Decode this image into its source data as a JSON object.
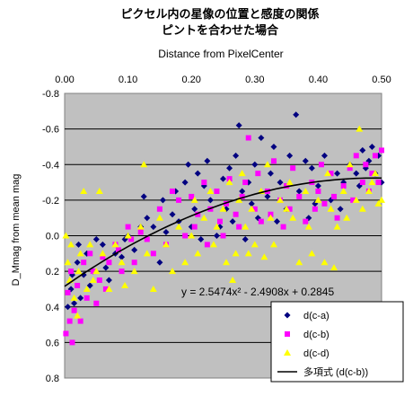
{
  "chart_data": {
    "type": "scatter",
    "title": "ピクセル内の星像の位置と感度の関係",
    "subtitle": "ピントを合わせた場合",
    "xlabel": "Distance from PixelCenter",
    "ylabel": "D_Mmag from mean mag",
    "xlim": [
      0.0,
      0.5
    ],
    "ylim": [
      -0.8,
      0.8
    ],
    "y_inverted": true,
    "x_axis_position": "top",
    "x_ticks": [
      "0.00",
      "0.10",
      "0.20",
      "0.30",
      "0.40",
      "0.50"
    ],
    "y_ticks": [
      "-0.8",
      "-0.6",
      "-0.4",
      "-0.2",
      "0.0",
      "0.2",
      "0.4",
      "0.6",
      "0.8"
    ],
    "grid": true,
    "plot_background": "#c0c0c0",
    "legend_position": "bottom-right",
    "equation": "y = 2.5474x² - 2.4908x + 0.2845",
    "series": [
      {
        "name": "d(c-a)",
        "marker": "diamond",
        "color": "#000080",
        "points": [
          [
            0.005,
            0.4
          ],
          [
            0.01,
            0.3
          ],
          [
            0.012,
            0.22
          ],
          [
            0.015,
            0.38
          ],
          [
            0.02,
            0.15
          ],
          [
            0.022,
            0.05
          ],
          [
            0.025,
            0.35
          ],
          [
            0.03,
            0.22
          ],
          [
            0.035,
            0.1
          ],
          [
            0.04,
            0.28
          ],
          [
            0.045,
            0.2
          ],
          [
            0.05,
            0.02
          ],
          [
            0.06,
            0.05
          ],
          [
            0.065,
            0.18
          ],
          [
            0.07,
            0.25
          ],
          [
            0.08,
            0.1
          ],
          [
            0.09,
            0.12
          ],
          [
            0.095,
            0.02
          ],
          [
            0.1,
            0.0
          ],
          [
            0.11,
            0.08
          ],
          [
            0.12,
            -0.05
          ],
          [
            0.125,
            -0.22
          ],
          [
            0.13,
            -0.1
          ],
          [
            0.14,
            -0.05
          ],
          [
            0.15,
            0.15
          ],
          [
            0.155,
            -0.2
          ],
          [
            0.16,
            -0.02
          ],
          [
            0.17,
            -0.12
          ],
          [
            0.175,
            -0.25
          ],
          [
            0.18,
            -0.08
          ],
          [
            0.19,
            -0.3
          ],
          [
            0.195,
            -0.4
          ],
          [
            0.2,
            -0.05
          ],
          [
            0.205,
            -0.15
          ],
          [
            0.21,
            -0.35
          ],
          [
            0.215,
            0.02
          ],
          [
            0.22,
            -0.28
          ],
          [
            0.225,
            -0.42
          ],
          [
            0.23,
            -0.2
          ],
          [
            0.24,
            0.0
          ],
          [
            0.245,
            -0.05
          ],
          [
            0.25,
            -0.32
          ],
          [
            0.255,
            -0.15
          ],
          [
            0.26,
            -0.38
          ],
          [
            0.265,
            -0.08
          ],
          [
            0.27,
            -0.45
          ],
          [
            0.275,
            -0.62
          ],
          [
            0.28,
            -0.25
          ],
          [
            0.285,
            0.02
          ],
          [
            0.29,
            -0.3
          ],
          [
            0.295,
            -0.18
          ],
          [
            0.3,
            -0.4
          ],
          [
            0.305,
            -0.1
          ],
          [
            0.31,
            -0.55
          ],
          [
            0.32,
            -0.22
          ],
          [
            0.325,
            -0.35
          ],
          [
            0.33,
            -0.5
          ],
          [
            0.335,
            -0.08
          ],
          [
            0.34,
            -0.3
          ],
          [
            0.35,
            -0.15
          ],
          [
            0.355,
            -0.45
          ],
          [
            0.365,
            -0.68
          ],
          [
            0.37,
            -0.25
          ],
          [
            0.38,
            -0.42
          ],
          [
            0.385,
            -0.1
          ],
          [
            0.39,
            -0.38
          ],
          [
            0.395,
            -0.18
          ],
          [
            0.4,
            -0.28
          ],
          [
            0.41,
            -0.45
          ],
          [
            0.42,
            -0.2
          ],
          [
            0.43,
            -0.35
          ],
          [
            0.435,
            -0.15
          ],
          [
            0.44,
            -0.3
          ],
          [
            0.45,
            -0.4
          ],
          [
            0.46,
            -0.35
          ],
          [
            0.465,
            -0.28
          ],
          [
            0.47,
            -0.48
          ],
          [
            0.475,
            -0.38
          ],
          [
            0.48,
            -0.42
          ],
          [
            0.485,
            -0.5
          ],
          [
            0.49,
            -0.35
          ],
          [
            0.495,
            -0.45
          ],
          [
            0.5,
            -0.3
          ]
        ]
      },
      {
        "name": "d(c-b)",
        "marker": "square",
        "color": "#ff00ff",
        "points": [
          [
            0.002,
            0.55
          ],
          [
            0.005,
            0.32
          ],
          [
            0.008,
            0.48
          ],
          [
            0.01,
            0.2
          ],
          [
            0.012,
            0.6
          ],
          [
            0.015,
            0.42
          ],
          [
            0.02,
            0.28
          ],
          [
            0.025,
            0.48
          ],
          [
            0.03,
            0.15
          ],
          [
            0.035,
            0.35
          ],
          [
            0.04,
            0.1
          ],
          [
            0.045,
            0.2
          ],
          [
            0.05,
            0.38
          ],
          [
            0.055,
            0.25
          ],
          [
            0.06,
            0.12
          ],
          [
            0.065,
            0.3
          ],
          [
            0.07,
            0.15
          ],
          [
            0.08,
            0.05
          ],
          [
            0.085,
            0.08
          ],
          [
            0.09,
            0.2
          ],
          [
            0.1,
            -0.05
          ],
          [
            0.105,
            0.02
          ],
          [
            0.11,
            0.15
          ],
          [
            0.12,
            -0.02
          ],
          [
            0.13,
            0.02
          ],
          [
            0.14,
            0.1
          ],
          [
            0.15,
            -0.15
          ],
          [
            0.16,
            0.05
          ],
          [
            0.17,
            -0.25
          ],
          [
            0.18,
            -0.2
          ],
          [
            0.19,
            0.0
          ],
          [
            0.2,
            -0.22
          ],
          [
            0.205,
            -0.05
          ],
          [
            0.21,
            -0.12
          ],
          [
            0.22,
            -0.3
          ],
          [
            0.225,
            0.05
          ],
          [
            0.23,
            -0.15
          ],
          [
            0.24,
            -0.25
          ],
          [
            0.245,
            -0.08
          ],
          [
            0.25,
            0.0
          ],
          [
            0.255,
            -0.18
          ],
          [
            0.26,
            -0.32
          ],
          [
            0.27,
            -0.12
          ],
          [
            0.275,
            -0.05
          ],
          [
            0.28,
            -0.22
          ],
          [
            0.285,
            -0.3
          ],
          [
            0.29,
            -0.55
          ],
          [
            0.3,
            -0.15
          ],
          [
            0.305,
            -0.35
          ],
          [
            0.31,
            -0.08
          ],
          [
            0.32,
            -0.25
          ],
          [
            0.325,
            -0.12
          ],
          [
            0.33,
            -0.42
          ],
          [
            0.34,
            -0.2
          ],
          [
            0.345,
            -0.05
          ],
          [
            0.35,
            -0.28
          ],
          [
            0.355,
            -0.15
          ],
          [
            0.36,
            -0.38
          ],
          [
            0.37,
            -0.22
          ],
          [
            0.38,
            -0.08
          ],
          [
            0.39,
            -0.3
          ],
          [
            0.395,
            -0.15
          ],
          [
            0.4,
            -0.25
          ],
          [
            0.405,
            -0.4
          ],
          [
            0.41,
            -0.18
          ],
          [
            0.42,
            -0.35
          ],
          [
            0.425,
            -0.22
          ],
          [
            0.43,
            -0.1
          ],
          [
            0.44,
            -0.28
          ],
          [
            0.45,
            -0.38
          ],
          [
            0.455,
            -0.2
          ],
          [
            0.46,
            -0.45
          ],
          [
            0.47,
            -0.3
          ],
          [
            0.475,
            -0.4
          ],
          [
            0.48,
            -0.25
          ],
          [
            0.485,
            -0.35
          ],
          [
            0.49,
            -0.45
          ],
          [
            0.495,
            -0.3
          ],
          [
            0.5,
            -0.48
          ]
        ]
      },
      {
        "name": "d(c-d)",
        "marker": "triangle",
        "color": "#ffff00",
        "points": [
          [
            0.002,
            0.0
          ],
          [
            0.005,
            0.15
          ],
          [
            0.008,
            0.25
          ],
          [
            0.01,
            0.05
          ],
          [
            0.015,
            0.35
          ],
          [
            0.02,
            0.45
          ],
          [
            0.022,
            0.2
          ],
          [
            0.025,
            0.1
          ],
          [
            0.03,
            -0.25
          ],
          [
            0.035,
            0.3
          ],
          [
            0.04,
            0.05
          ],
          [
            0.045,
            0.25
          ],
          [
            0.05,
            0.2
          ],
          [
            0.055,
            -0.25
          ],
          [
            0.06,
            0.1
          ],
          [
            0.07,
            0.3
          ],
          [
            0.08,
            0.05
          ],
          [
            0.09,
            0.15
          ],
          [
            0.095,
            0.28
          ],
          [
            0.1,
            0.0
          ],
          [
            0.11,
            0.2
          ],
          [
            0.12,
            -0.05
          ],
          [
            0.125,
            -0.4
          ],
          [
            0.13,
            0.1
          ],
          [
            0.14,
            0.3
          ],
          [
            0.15,
            -0.1
          ],
          [
            0.16,
            0.05
          ],
          [
            0.17,
            0.2
          ],
          [
            0.18,
            -0.05
          ],
          [
            0.19,
            0.15
          ],
          [
            0.2,
            0.0
          ],
          [
            0.205,
            -0.2
          ],
          [
            0.21,
            0.1
          ],
          [
            0.22,
            -0.1
          ],
          [
            0.23,
            -0.25
          ],
          [
            0.235,
            0.05
          ],
          [
            0.24,
            -0.05
          ],
          [
            0.25,
            -0.15
          ],
          [
            0.255,
            0.15
          ],
          [
            0.26,
            -0.3
          ],
          [
            0.265,
            0.25
          ],
          [
            0.27,
            0.1
          ],
          [
            0.275,
            -0.2
          ],
          [
            0.28,
            -0.35
          ],
          [
            0.285,
            -0.05
          ],
          [
            0.29,
            0.1
          ],
          [
            0.295,
            -0.15
          ],
          [
            0.3,
            0.05
          ],
          [
            0.31,
            -0.25
          ],
          [
            0.315,
            0.12
          ],
          [
            0.32,
            -0.4
          ],
          [
            0.325,
            -0.1
          ],
          [
            0.33,
            0.05
          ],
          [
            0.34,
            -0.2
          ],
          [
            0.35,
            -0.15
          ],
          [
            0.355,
            -0.3
          ],
          [
            0.36,
            -0.1
          ],
          [
            0.37,
            0.15
          ],
          [
            0.38,
            -0.25
          ],
          [
            0.385,
            -0.05
          ],
          [
            0.39,
            0.1
          ],
          [
            0.4,
            -0.2
          ],
          [
            0.41,
            0.15
          ],
          [
            0.415,
            -0.35
          ],
          [
            0.42,
            -0.15
          ],
          [
            0.425,
            0.18
          ],
          [
            0.43,
            -0.05
          ],
          [
            0.44,
            -0.25
          ],
          [
            0.445,
            -0.1
          ],
          [
            0.45,
            -0.4
          ],
          [
            0.46,
            -0.2
          ],
          [
            0.465,
            -0.6
          ],
          [
            0.47,
            -0.15
          ],
          [
            0.48,
            -0.25
          ],
          [
            0.485,
            -0.3
          ],
          [
            0.49,
            -0.35
          ],
          [
            0.495,
            -0.18
          ],
          [
            0.5,
            -0.2
          ]
        ]
      }
    ],
    "trendline": {
      "name": "多項式 (d(c-b))",
      "color": "#000000",
      "coefficients": [
        2.5474,
        -2.4908,
        0.2845
      ],
      "x_range": [
        0.0,
        0.5
      ]
    }
  }
}
